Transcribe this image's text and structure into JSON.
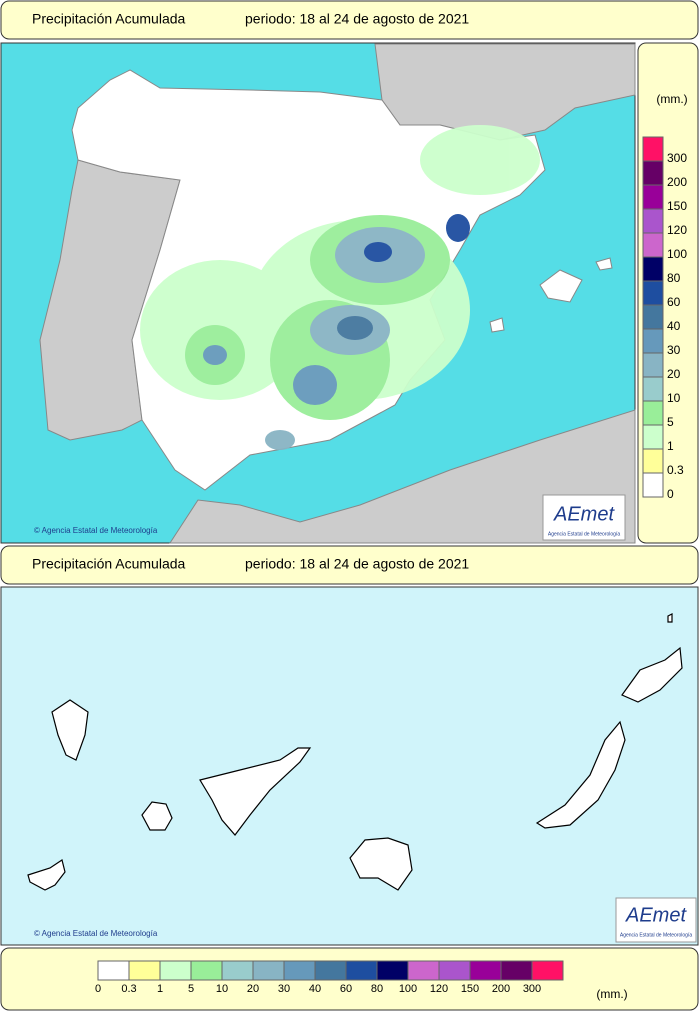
{
  "header": {
    "title": "Precipitación Acumulada",
    "period": "periodo: 18 al 24 de agosto de 2021"
  },
  "legend": {
    "unit": "(mm.)",
    "classes": [
      {
        "label": "0",
        "color": "#ffffff"
      },
      {
        "label": "0.3",
        "color": "#ffff99"
      },
      {
        "label": "1",
        "color": "#ccffcc"
      },
      {
        "label": "5",
        "color": "#99ee99"
      },
      {
        "label": "10",
        "color": "#99cccc"
      },
      {
        "label": "20",
        "color": "#88b4c4"
      },
      {
        "label": "30",
        "color": "#6699bb"
      },
      {
        "label": "40",
        "color": "#44779e"
      },
      {
        "label": "60",
        "color": "#1e4ea0"
      },
      {
        "label": "80",
        "color": "#000066"
      },
      {
        "label": "100",
        "color": "#cc66cc"
      },
      {
        "label": "120",
        "color": "#aa55cc"
      },
      {
        "label": "150",
        "color": "#990099"
      },
      {
        "label": "200",
        "color": "#660066"
      },
      {
        "label": "300",
        "color": "#ff1166"
      }
    ]
  },
  "credits": {
    "copyright": "© Agencia Estatal de Meteorología",
    "logo": "AEmet",
    "logo_subtitle": "Agencia Estatal de Meteorología"
  }
}
